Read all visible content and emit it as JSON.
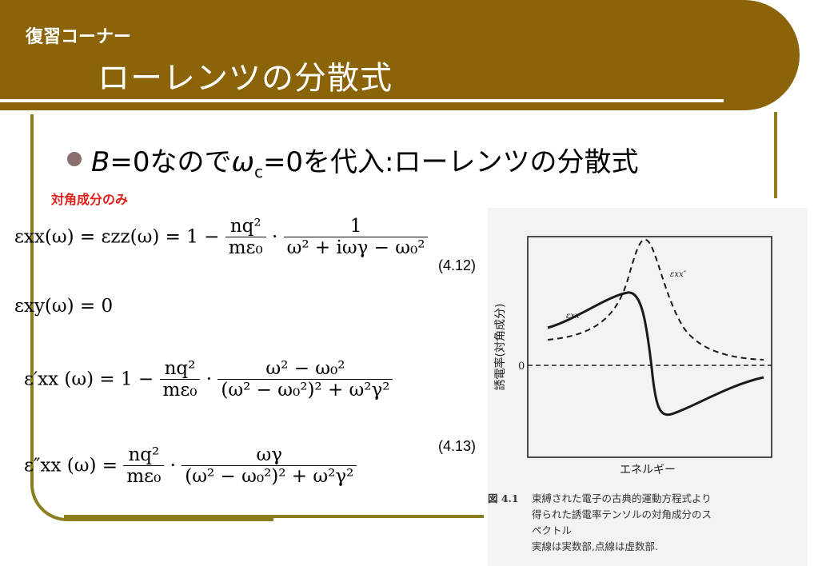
{
  "header": {
    "kicker": "復習コーナー",
    "title": "ローレンツの分散式"
  },
  "bullet": {
    "var_b": "B",
    "eq0": "=0なので",
    "omega": "ω",
    "sub_c": "c",
    "rest": "=0を代入:ローレンツの分散式"
  },
  "note": "対角成分のみ",
  "equations": {
    "eq1_lhs": "εxx(ω) = εzz(ω) = 1 −",
    "eq1_f1_num": "nq²",
    "eq1_f1_den": "mε₀",
    "eq1_f2_num": "1",
    "eq1_f2_den": "ω² + iωγ − ω₀²",
    "eq1_no": "(4.12)",
    "eq2": "εxy(ω) = 0",
    "eq3_lhs": "ε′xx (ω) = 1 −",
    "eq3_f1_num": "nq²",
    "eq3_f1_den": "mε₀",
    "eq3_f2_num": "ω² − ω₀²",
    "eq3_f2_den": "(ω² − ω₀²)² + ω²γ²",
    "eq4_lhs": "ε″xx (ω) =",
    "eq4_f1_num": "nq²",
    "eq4_f1_den": "mε₀",
    "eq4_f2_num": "ωγ",
    "eq4_f2_den": "(ω² − ω₀²)² + ω²γ²",
    "eq34_no": "(4.13)"
  },
  "figure": {
    "y_label": "誘電率(対角成分)",
    "x_label": "エネルギー",
    "zero_label": "0",
    "curve_real_label": "εxx′",
    "curve_imag_label": "εxx″",
    "caption_label": "図 4.1",
    "caption_lines": [
      "束縛された電子の古典的運動方程式より",
      "得られた誘電率テンソルの対角成分のス",
      "ペクトル",
      "実線は実数部,点線は虚数部."
    ]
  }
}
